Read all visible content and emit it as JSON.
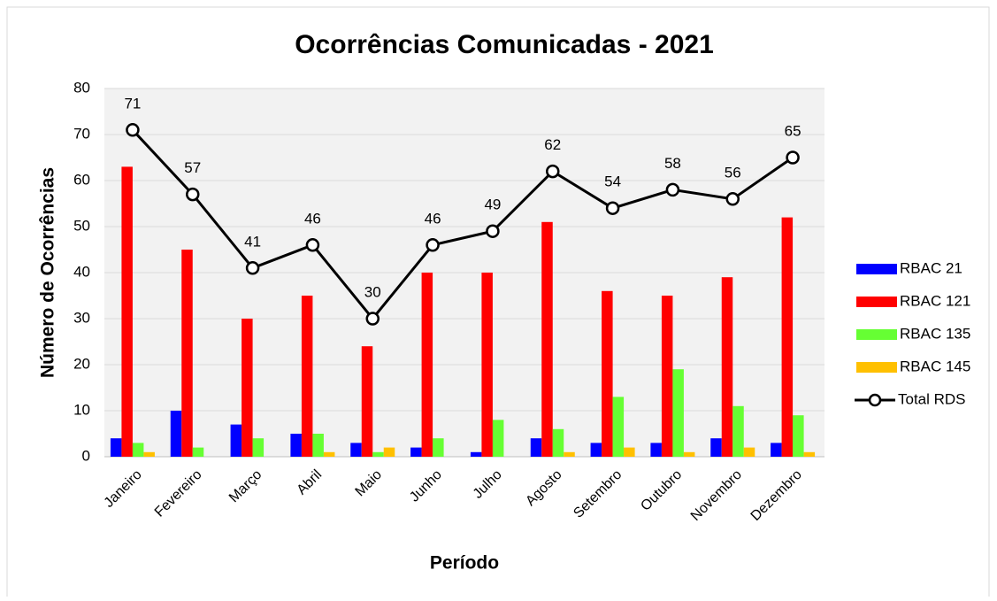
{
  "chart_data": {
    "type": "bar",
    "title": "Ocorrências Comunicadas - 2021",
    "xlabel": "Período",
    "ylabel": "Número de Ocorrências",
    "categories": [
      "Janeiro",
      "Fevereiro",
      "Março",
      "Abril",
      "Maio",
      "Junho",
      "Julho",
      "Agosto",
      "Setembro",
      "Outubro",
      "Novembro",
      "Dezembro"
    ],
    "series": [
      {
        "name": "RBAC 21",
        "color": "#0000ff",
        "values": [
          4,
          10,
          7,
          5,
          3,
          2,
          1,
          4,
          3,
          3,
          4,
          3
        ]
      },
      {
        "name": "RBAC 121",
        "color": "#ff0000",
        "values": [
          63,
          45,
          30,
          35,
          24,
          40,
          40,
          51,
          36,
          35,
          39,
          52
        ]
      },
      {
        "name": "RBAC 135",
        "color": "#66ff33",
        "values": [
          3,
          2,
          4,
          5,
          1,
          4,
          8,
          6,
          13,
          19,
          11,
          9
        ]
      },
      {
        "name": "RBAC 145",
        "color": "#ffc000",
        "values": [
          1,
          0,
          0,
          1,
          2,
          0,
          0,
          1,
          2,
          1,
          2,
          1
        ]
      },
      {
        "name": "Total RDS",
        "color": "#000000",
        "type": "line",
        "values": [
          71,
          57,
          41,
          46,
          30,
          46,
          49,
          62,
          54,
          58,
          56,
          65
        ]
      }
    ],
    "ylim": [
      0,
      80
    ],
    "yticks": [
      0,
      10,
      20,
      30,
      40,
      50,
      60,
      70,
      80
    ],
    "grid": true,
    "legend": "right"
  }
}
